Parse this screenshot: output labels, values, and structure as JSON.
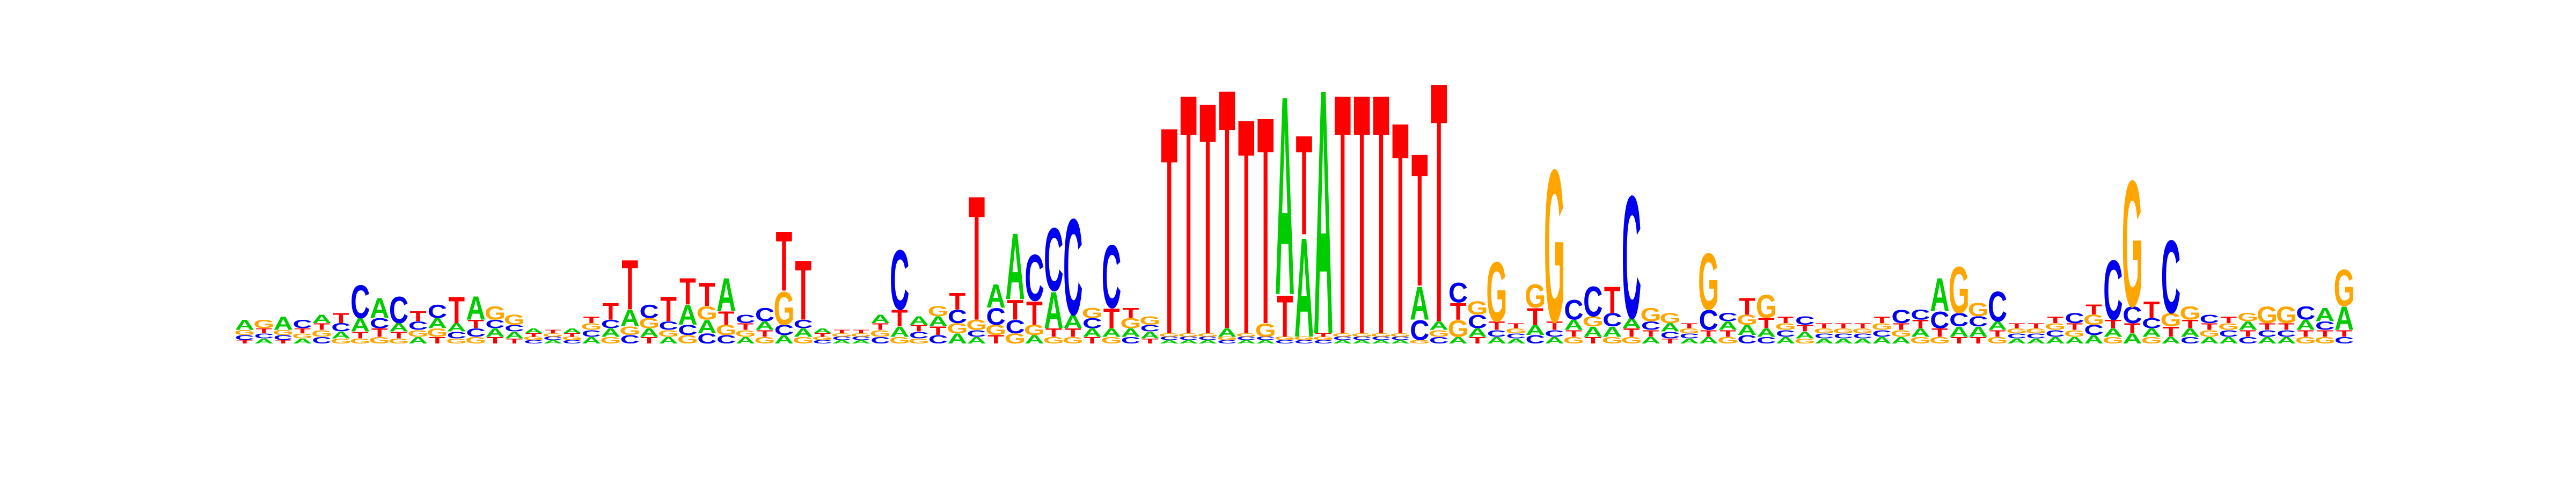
{
  "chart_data": {
    "type": "sequence_logo",
    "alphabet": [
      "A",
      "C",
      "G",
      "T"
    ],
    "colors": {
      "A": "#00cc00",
      "C": "#0000ee",
      "G": "#ffa500",
      "T": "#ff0000"
    },
    "title": "",
    "xlabel": "",
    "ylabel": "",
    "ylim": [
      0,
      2
    ],
    "positions": [
      {
        "A": 0.06,
        "C": 0.03,
        "G": 0.03,
        "T": 0.02
      },
      {
        "A": 0.03,
        "C": 0.03,
        "G": 0.05,
        "T": 0.03
      },
      {
        "A": 0.08,
        "C": 0.03,
        "G": 0.03,
        "T": 0.02
      },
      {
        "A": 0.03,
        "C": 0.05,
        "G": 0.03,
        "T": 0.03
      },
      {
        "A": 0.05,
        "C": 0.04,
        "G": 0.04,
        "T": 0.04
      },
      {
        "A": 0.04,
        "C": 0.05,
        "G": 0.03,
        "T": 0.06
      },
      {
        "A": 0.08,
        "C": 0.2,
        "G": 0.03,
        "T": 0.04
      },
      {
        "A": 0.12,
        "C": 0.06,
        "G": 0.04,
        "T": 0.05
      },
      {
        "A": 0.05,
        "C": 0.16,
        "G": 0.03,
        "T": 0.04
      },
      {
        "A": 0.04,
        "C": 0.05,
        "G": 0.04,
        "T": 0.06
      },
      {
        "A": 0.06,
        "C": 0.08,
        "G": 0.05,
        "T": 0.04
      },
      {
        "A": 0.05,
        "C": 0.04,
        "G": 0.03,
        "T": 0.16
      },
      {
        "A": 0.14,
        "C": 0.05,
        "G": 0.04,
        "T": 0.05
      },
      {
        "A": 0.05,
        "C": 0.05,
        "G": 0.08,
        "T": 0.04
      },
      {
        "A": 0.04,
        "C": 0.04,
        "G": 0.06,
        "T": 0.03
      },
      {
        "A": 0.03,
        "C": 0.02,
        "G": 0.02,
        "T": 0.02
      },
      {
        "A": 0.02,
        "C": 0.02,
        "G": 0.02,
        "T": 0.02
      },
      {
        "A": 0.03,
        "C": 0.02,
        "G": 0.02,
        "T": 0.02
      },
      {
        "A": 0.04,
        "C": 0.04,
        "G": 0.04,
        "T": 0.04
      },
      {
        "A": 0.05,
        "C": 0.05,
        "G": 0.04,
        "T": 0.1
      },
      {
        "A": 0.1,
        "C": 0.05,
        "G": 0.05,
        "T": 0.3
      },
      {
        "A": 0.05,
        "C": 0.08,
        "G": 0.06,
        "T": 0.04
      },
      {
        "A": 0.04,
        "C": 0.05,
        "G": 0.04,
        "T": 0.15
      },
      {
        "A": 0.12,
        "C": 0.06,
        "G": 0.05,
        "T": 0.16
      },
      {
        "A": 0.08,
        "C": 0.06,
        "G": 0.08,
        "T": 0.14
      },
      {
        "A": 0.2,
        "C": 0.05,
        "G": 0.06,
        "T": 0.08
      },
      {
        "A": 0.04,
        "C": 0.05,
        "G": 0.04,
        "T": 0.04
      },
      {
        "A": 0.05,
        "C": 0.08,
        "G": 0.04,
        "T": 0.04
      },
      {
        "A": 0.05,
        "C": 0.06,
        "G": 0.2,
        "T": 0.36
      },
      {
        "A": 0.05,
        "C": 0.05,
        "G": 0.04,
        "T": 0.36
      },
      {
        "A": 0.03,
        "C": 0.02,
        "G": 0.02,
        "T": 0.02
      },
      {
        "A": 0.02,
        "C": 0.02,
        "G": 0.02,
        "T": 0.02
      },
      {
        "A": 0.02,
        "C": 0.02,
        "G": 0.02,
        "T": 0.02
      },
      {
        "A": 0.05,
        "C": 0.04,
        "G": 0.04,
        "T": 0.04
      },
      {
        "A": 0.06,
        "C": 0.36,
        "G": 0.04,
        "T": 0.1
      },
      {
        "A": 0.05,
        "C": 0.04,
        "G": 0.03,
        "T": 0.04
      },
      {
        "A": 0.06,
        "C": 0.05,
        "G": 0.06,
        "T": 0.05
      },
      {
        "A": 0.06,
        "C": 0.08,
        "G": 0.06,
        "T": 0.1
      },
      {
        "A": 0.04,
        "C": 0.04,
        "G": 0.06,
        "T": 0.75
      },
      {
        "A": 0.14,
        "C": 0.1,
        "G": 0.06,
        "T": 0.05
      },
      {
        "A": 0.4,
        "C": 0.08,
        "G": 0.06,
        "T": 0.12
      },
      {
        "A": 0.05,
        "C": 0.28,
        "G": 0.06,
        "T": 0.14
      },
      {
        "A": 0.22,
        "C": 0.38,
        "G": 0.04,
        "T": 0.05
      },
      {
        "A": 0.08,
        "C": 0.58,
        "G": 0.04,
        "T": 0.05
      },
      {
        "A": 0.05,
        "C": 0.06,
        "G": 0.06,
        "T": 0.04
      },
      {
        "A": 0.05,
        "C": 0.38,
        "G": 0.04,
        "T": 0.12
      },
      {
        "A": 0.05,
        "C": 0.04,
        "G": 0.06,
        "T": 0.06
      },
      {
        "A": 0.04,
        "C": 0.04,
        "G": 0.05,
        "T": 0.03
      },
      {
        "A": 0.02,
        "C": 0.02,
        "G": 0.02,
        "T": 1.25
      },
      {
        "A": 0.02,
        "C": 0.02,
        "G": 0.02,
        "T": 1.45
      },
      {
        "A": 0.02,
        "C": 0.02,
        "G": 0.02,
        "T": 1.4
      },
      {
        "A": 0.05,
        "C": 0.02,
        "G": 0.02,
        "T": 1.45
      },
      {
        "A": 0.02,
        "C": 0.02,
        "G": 0.02,
        "T": 1.3
      },
      {
        "A": 0.02,
        "C": 0.02,
        "G": 0.08,
        "T": 1.25
      },
      {
        "A": 1.2,
        "C": 0.02,
        "G": 0.02,
        "T": 0.25
      },
      {
        "A": 0.6,
        "C": 0.02,
        "G": 0.02,
        "T": 0.6
      },
      {
        "A": 1.48,
        "C": 0.02,
        "G": 0.02,
        "T": 0.02
      },
      {
        "A": 0.02,
        "C": 0.02,
        "G": 0.02,
        "T": 1.45
      },
      {
        "A": 0.02,
        "C": 0.02,
        "G": 0.02,
        "T": 1.45
      },
      {
        "A": 0.02,
        "C": 0.02,
        "G": 0.02,
        "T": 1.45
      },
      {
        "A": 0.02,
        "C": 0.02,
        "G": 0.02,
        "T": 1.28
      },
      {
        "A": 0.2,
        "C": 0.12,
        "G": 0.02,
        "T": 0.8
      },
      {
        "A": 0.05,
        "C": 0.04,
        "G": 0.04,
        "T": 1.45
      },
      {
        "A": 0.04,
        "C": 0.12,
        "G": 0.1,
        "T": 0.1
      },
      {
        "A": 0.05,
        "C": 0.08,
        "G": 0.08,
        "T": 0.04
      },
      {
        "A": 0.04,
        "C": 0.04,
        "G": 0.36,
        "T": 0.05
      },
      {
        "A": 0.03,
        "C": 0.03,
        "G": 0.03,
        "T": 0.03
      },
      {
        "A": 0.06,
        "C": 0.05,
        "G": 0.14,
        "T": 0.1
      },
      {
        "A": 0.04,
        "C": 0.04,
        "G": 0.92,
        "T": 0.05
      },
      {
        "A": 0.06,
        "C": 0.12,
        "G": 0.04,
        "T": 0.04
      },
      {
        "A": 0.06,
        "C": 0.18,
        "G": 0.06,
        "T": 0.04
      },
      {
        "A": 0.06,
        "C": 0.08,
        "G": 0.04,
        "T": 0.16
      },
      {
        "A": 0.06,
        "C": 0.74,
        "G": 0.04,
        "T": 0.05
      },
      {
        "A": 0.04,
        "C": 0.05,
        "G": 0.08,
        "T": 0.04
      },
      {
        "A": 0.05,
        "C": 0.04,
        "G": 0.06,
        "T": 0.03
      },
      {
        "A": 0.03,
        "C": 0.03,
        "G": 0.03,
        "T": 0.03
      },
      {
        "A": 0.04,
        "C": 0.12,
        "G": 0.34,
        "T": 0.04
      },
      {
        "A": 0.05,
        "C": 0.05,
        "G": 0.04,
        "T": 0.04
      },
      {
        "A": 0.06,
        "C": 0.05,
        "G": 0.06,
        "T": 0.1
      },
      {
        "A": 0.05,
        "C": 0.04,
        "G": 0.14,
        "T": 0.06
      },
      {
        "A": 0.04,
        "C": 0.04,
        "G": 0.04,
        "T": 0.04
      },
      {
        "A": 0.04,
        "C": 0.05,
        "G": 0.03,
        "T": 0.04
      },
      {
        "A": 0.03,
        "C": 0.03,
        "G": 0.03,
        "T": 0.03
      },
      {
        "A": 0.03,
        "C": 0.03,
        "G": 0.03,
        "T": 0.03
      },
      {
        "A": 0.03,
        "C": 0.03,
        "G": 0.03,
        "T": 0.03
      },
      {
        "A": 0.04,
        "C": 0.04,
        "G": 0.04,
        "T": 0.04
      },
      {
        "A": 0.04,
        "C": 0.08,
        "G": 0.04,
        "T": 0.04
      },
      {
        "A": 0.05,
        "C": 0.06,
        "G": 0.04,
        "T": 0.05
      },
      {
        "A": 0.2,
        "C": 0.1,
        "G": 0.04,
        "T": 0.05
      },
      {
        "A": 0.06,
        "C": 0.08,
        "G": 0.28,
        "T": 0.04
      },
      {
        "A": 0.06,
        "C": 0.06,
        "G": 0.08,
        "T": 0.04
      },
      {
        "A": 0.05,
        "C": 0.18,
        "G": 0.04,
        "T": 0.04
      },
      {
        "A": 0.03,
        "C": 0.03,
        "G": 0.03,
        "T": 0.03
      },
      {
        "A": 0.03,
        "C": 0.03,
        "G": 0.03,
        "T": 0.03
      },
      {
        "A": 0.04,
        "C": 0.04,
        "G": 0.04,
        "T": 0.04
      },
      {
        "A": 0.04,
        "C": 0.06,
        "G": 0.04,
        "T": 0.04
      },
      {
        "A": 0.05,
        "C": 0.06,
        "G": 0.06,
        "T": 0.06
      },
      {
        "A": 0.05,
        "C": 0.36,
        "G": 0.04,
        "T": 0.05
      },
      {
        "A": 0.06,
        "C": 0.1,
        "G": 0.76,
        "T": 0.06
      },
      {
        "A": 0.05,
        "C": 0.06,
        "G": 0.04,
        "T": 0.1
      },
      {
        "A": 0.04,
        "C": 0.44,
        "G": 0.08,
        "T": 0.06
      },
      {
        "A": 0.05,
        "C": 0.04,
        "G": 0.08,
        "T": 0.05
      },
      {
        "A": 0.04,
        "C": 0.05,
        "G": 0.04,
        "T": 0.04
      },
      {
        "A": 0.04,
        "C": 0.04,
        "G": 0.04,
        "T": 0.04
      },
      {
        "A": 0.05,
        "C": 0.04,
        "G": 0.05,
        "T": 0.04
      },
      {
        "A": 0.04,
        "C": 0.04,
        "G": 0.1,
        "T": 0.04
      },
      {
        "A": 0.04,
        "C": 0.04,
        "G": 0.1,
        "T": 0.04
      },
      {
        "A": 0.06,
        "C": 0.08,
        "G": 0.04,
        "T": 0.04
      },
      {
        "A": 0.08,
        "C": 0.05,
        "G": 0.04,
        "T": 0.04
      },
      {
        "A": 0.14,
        "C": 0.04,
        "G": 0.22,
        "T": 0.04
      }
    ]
  }
}
